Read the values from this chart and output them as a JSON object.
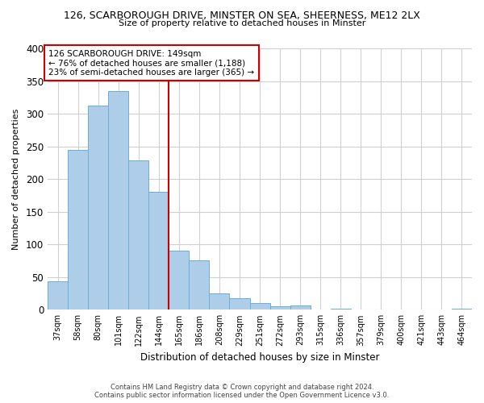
{
  "title": "126, SCARBOROUGH DRIVE, MINSTER ON SEA, SHEERNESS, ME12 2LX",
  "subtitle": "Size of property relative to detached houses in Minster",
  "xlabel": "Distribution of detached houses by size in Minster",
  "ylabel": "Number of detached properties",
  "bar_labels": [
    "37sqm",
    "58sqm",
    "80sqm",
    "101sqm",
    "122sqm",
    "144sqm",
    "165sqm",
    "186sqm",
    "208sqm",
    "229sqm",
    "251sqm",
    "272sqm",
    "293sqm",
    "315sqm",
    "336sqm",
    "357sqm",
    "379sqm",
    "400sqm",
    "421sqm",
    "443sqm",
    "464sqm"
  ],
  "bar_values": [
    43,
    245,
    313,
    335,
    228,
    180,
    91,
    75,
    25,
    18,
    10,
    5,
    6,
    0,
    1,
    0,
    0,
    0,
    0,
    0,
    2
  ],
  "bar_color": "#aecde8",
  "bar_edge_color": "#6aaed6",
  "vline_x_idx": 5.5,
  "vline_color": "#cc0000",
  "annotation_line1": "126 SCARBOROUGH DRIVE: 149sqm",
  "annotation_line2": "← 76% of detached houses are smaller (1,188)",
  "annotation_line3": "23% of semi-detached houses are larger (365) →",
  "annotation_box_color": "#ffffff",
  "annotation_box_edge": "#cc0000",
  "ylim": [
    0,
    400
  ],
  "yticks": [
    0,
    50,
    100,
    150,
    200,
    250,
    300,
    350,
    400
  ],
  "footnote": "Contains HM Land Registry data © Crown copyright and database right 2024.\nContains public sector information licensed under the Open Government Licence v3.0.",
  "bg_color": "#ffffff",
  "grid_color": "#d0d0d0"
}
